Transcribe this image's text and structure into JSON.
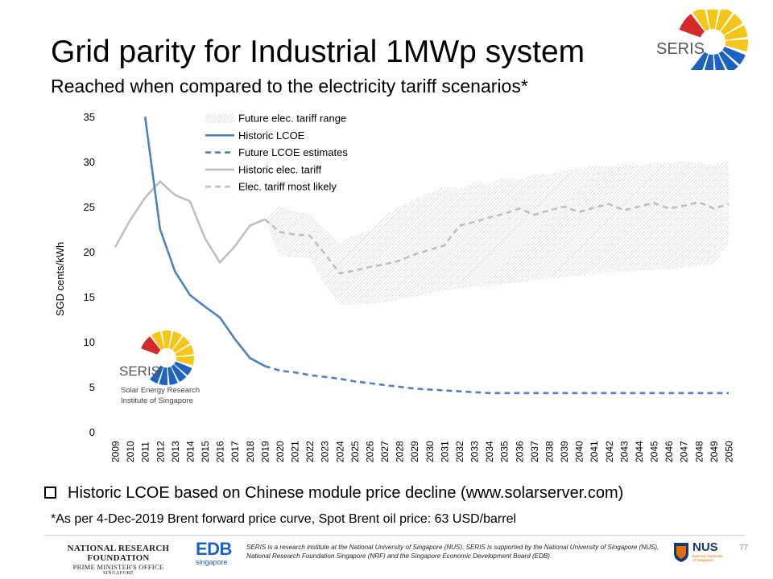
{
  "title": "Grid parity for Industrial 1MWp system",
  "subtitle": "Reached when compared to the electricity tariff scenarios*",
  "logo": {
    "text": "SERIS",
    "subtext_1": "Solar Energy Research",
    "subtext_2": "Institute of Singapore"
  },
  "colors": {
    "lcoe": "#4f81bd",
    "tariff": "#bfbfbf",
    "range_hatch": "#b8b8b8",
    "logo_red": "#d42a2a",
    "logo_yellow": "#f5c518",
    "logo_blue": "#1f63c2"
  },
  "bullet": "Historic LCOE based on Chinese module price decline (www.solarserver.com)",
  "footnote": "*As per 4-Dec-2019 Brent forward price curve, Spot Brent oil price: 63 USD/barrel",
  "footer": {
    "nrf_line1": "NATIONAL RESEARCH FOUNDATION",
    "nrf_line2": "PRIME MINISTER'S OFFICE",
    "nrf_line3": "SINGAPORE",
    "edb_text": "EDB",
    "edb_sub": "singapore",
    "disclaimer": "SERIS is a research institute at the National University of Singapore (NUS). SERIS is supported by the National University of Singapore (NUS), National Research Foundation Singapore (NRF) and the Singapore Economic Development Board (EDB).",
    "nus_text": "NUS",
    "nus_sub": "National University of Singapore",
    "page_number": "77"
  },
  "chart_data": {
    "type": "line",
    "title": "",
    "xlabel": "",
    "ylabel": "SGD cents/kWh",
    "ylim": [
      0,
      35
    ],
    "yticks": [
      0,
      5,
      10,
      15,
      20,
      25,
      30,
      35
    ],
    "grid": false,
    "legend_position": "top-center",
    "x": [
      "2009",
      "2010",
      "2011",
      "2012",
      "2013",
      "2014",
      "2015",
      "2016",
      "2017",
      "2018",
      "2019",
      "2020",
      "2021",
      "2022",
      "2023",
      "2024",
      "2025",
      "2026",
      "2027",
      "2028",
      "2029",
      "2030",
      "2031",
      "2032",
      "2033",
      "2034",
      "2035",
      "2036",
      "2037",
      "2038",
      "2039",
      "2040",
      "2041",
      "2042",
      "2043",
      "2044",
      "2045",
      "2046",
      "2047",
      "2048",
      "2049",
      "2050"
    ],
    "legend": [
      {
        "name": "Future elec. tariff range",
        "style": "hatch"
      },
      {
        "name": "Historic LCOE",
        "style": "solid-blue"
      },
      {
        "name": "Future LCOE estimates",
        "style": "dashed-blue"
      },
      {
        "name": "Historic elec. tariff",
        "style": "solid-gray"
      },
      {
        "name": "Elec. tariff most likely",
        "style": "dashed-gray"
      }
    ],
    "historic_lcoe": {
      "x": [
        "2011",
        "2012",
        "2013",
        "2014",
        "2015",
        "2016",
        "2017",
        "2018",
        "2019"
      ],
      "values": [
        35.0,
        22.5,
        17.8,
        15.2,
        13.9,
        12.7,
        10.3,
        8.2,
        7.3
      ]
    },
    "future_lcoe": {
      "x": [
        "2019",
        "2020",
        "2021",
        "2022",
        "2023",
        "2024",
        "2025",
        "2026",
        "2027",
        "2028",
        "2029",
        "2030",
        "2031",
        "2032",
        "2033",
        "2034",
        "2035",
        "2036",
        "2037",
        "2038",
        "2039",
        "2040",
        "2041",
        "2042",
        "2043",
        "2044",
        "2045",
        "2046",
        "2047",
        "2048",
        "2049",
        "2050"
      ],
      "values": [
        7.3,
        6.8,
        6.6,
        6.3,
        6.1,
        5.9,
        5.6,
        5.4,
        5.2,
        5.0,
        4.8,
        4.7,
        4.6,
        4.5,
        4.4,
        4.3,
        4.3,
        4.3,
        4.3,
        4.3,
        4.3,
        4.3,
        4.3,
        4.3,
        4.3,
        4.3,
        4.3,
        4.3,
        4.3,
        4.3,
        4.3,
        4.3
      ]
    },
    "historic_tariff": {
      "x": [
        "2009",
        "2010",
        "2011",
        "2012",
        "2013",
        "2014",
        "2015",
        "2016",
        "2017",
        "2018",
        "2019"
      ],
      "values": [
        20.5,
        23.5,
        26.0,
        27.8,
        26.3,
        25.6,
        21.5,
        18.8,
        20.6,
        22.9,
        23.6
      ]
    },
    "tariff_most_likely": {
      "x": [
        "2019",
        "2020",
        "2021",
        "2022",
        "2023",
        "2024",
        "2025",
        "2026",
        "2027",
        "2028",
        "2029",
        "2030",
        "2031",
        "2032",
        "2033",
        "2034",
        "2035",
        "2036",
        "2037",
        "2038",
        "2039",
        "2040",
        "2041",
        "2042",
        "2043",
        "2044",
        "2045",
        "2046",
        "2047",
        "2048",
        "2049",
        "2050"
      ],
      "values": [
        23.6,
        22.2,
        21.9,
        21.8,
        19.8,
        17.6,
        17.9,
        18.3,
        18.6,
        19.0,
        19.7,
        20.2,
        20.7,
        22.9,
        23.3,
        23.8,
        24.2,
        24.8,
        24.1,
        24.6,
        25.0,
        24.4,
        24.9,
        25.3,
        24.6,
        25.0,
        25.4,
        24.8,
        25.1,
        25.5,
        24.8,
        25.3
      ]
    },
    "tariff_range": {
      "x": [
        "2019",
        "2020",
        "2021",
        "2022",
        "2023",
        "2024",
        "2025",
        "2026",
        "2027",
        "2028",
        "2029",
        "2030",
        "2031",
        "2032",
        "2033",
        "2034",
        "2035",
        "2036",
        "2037",
        "2038",
        "2039",
        "2040",
        "2041",
        "2042",
        "2043",
        "2044",
        "2045",
        "2046",
        "2047",
        "2048",
        "2049",
        "2050"
      ],
      "upper": [
        23.6,
        25.0,
        24.5,
        24.2,
        22.5,
        21.0,
        21.8,
        22.4,
        24.0,
        25.0,
        25.8,
        26.5,
        27.2,
        26.9,
        27.7,
        27.5,
        28.2,
        28.0,
        28.6,
        28.6,
        29.0,
        29.2,
        29.6,
        29.4,
        29.8,
        29.6,
        29.9,
        29.8,
        30.0,
        29.8,
        29.6,
        30.0
      ],
      "lower": [
        23.6,
        19.6,
        19.4,
        19.3,
        16.4,
        14.1,
        14.1,
        14.2,
        14.4,
        14.7,
        15.0,
        15.4,
        15.7,
        15.9,
        16.1,
        16.2,
        16.4,
        16.6,
        16.8,
        17.0,
        17.2,
        17.4,
        17.5,
        17.7,
        17.8,
        17.9,
        18.0,
        18.1,
        18.3,
        18.4,
        18.6,
        21.0
      ]
    }
  }
}
